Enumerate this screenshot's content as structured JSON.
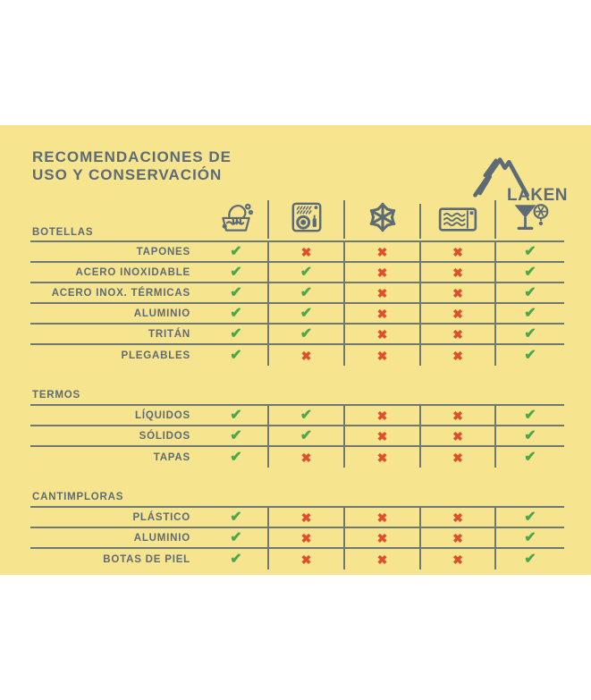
{
  "header": {
    "title_line1": "RECOMENDACIONES DE",
    "title_line2": "USO Y CONSERVACIÓN",
    "brand": "LAKEN"
  },
  "colors": {
    "card_bg": "#f7e48e",
    "text": "#5d6b76",
    "grid_line": "#6d7a74",
    "check": "#4aa74e",
    "cross": "#df4f2e"
  },
  "marks": {
    "check": "✔",
    "cross": "✖"
  },
  "columns": [
    {
      "icon": "hand-wash-icon"
    },
    {
      "icon": "dishwasher-icon"
    },
    {
      "icon": "freezer-icon"
    },
    {
      "icon": "microwave-icon"
    },
    {
      "icon": "drinks-icon"
    }
  ],
  "sections": [
    {
      "label": "BOTELLAS",
      "rows": [
        {
          "label": "TAPONES",
          "values": [
            "check",
            "cross",
            "cross",
            "cross",
            "check"
          ]
        },
        {
          "label": "ACERO INOXIDABLE",
          "values": [
            "check",
            "check",
            "cross",
            "cross",
            "check"
          ]
        },
        {
          "label": "ACERO INOX. TÉRMICAS",
          "values": [
            "check",
            "check",
            "cross",
            "cross",
            "check"
          ]
        },
        {
          "label": "ALUMINIO",
          "values": [
            "check",
            "check",
            "cross",
            "cross",
            "check"
          ]
        },
        {
          "label": "TRITÁN",
          "values": [
            "check",
            "check",
            "cross",
            "cross",
            "check"
          ]
        },
        {
          "label": "PLEGABLES",
          "values": [
            "check",
            "cross",
            "cross",
            "cross",
            "check"
          ]
        }
      ]
    },
    {
      "label": "TERMOS",
      "rows": [
        {
          "label": "LÍQUIDOS",
          "values": [
            "check",
            "check",
            "cross",
            "cross",
            "check"
          ]
        },
        {
          "label": "SÓLIDOS",
          "values": [
            "check",
            "check",
            "cross",
            "cross",
            "check"
          ]
        },
        {
          "label": "TAPAS",
          "values": [
            "check",
            "cross",
            "cross",
            "cross",
            "check"
          ]
        }
      ]
    },
    {
      "label": "CANTIMPLORAS",
      "rows": [
        {
          "label": "PLÁSTICO",
          "values": [
            "check",
            "cross",
            "cross",
            "cross",
            "check"
          ]
        },
        {
          "label": "ALUMINIO",
          "values": [
            "check",
            "cross",
            "cross",
            "cross",
            "check"
          ]
        },
        {
          "label": "BOTAS DE PIEL",
          "values": [
            "check",
            "cross",
            "cross",
            "cross",
            "check"
          ]
        }
      ]
    }
  ]
}
